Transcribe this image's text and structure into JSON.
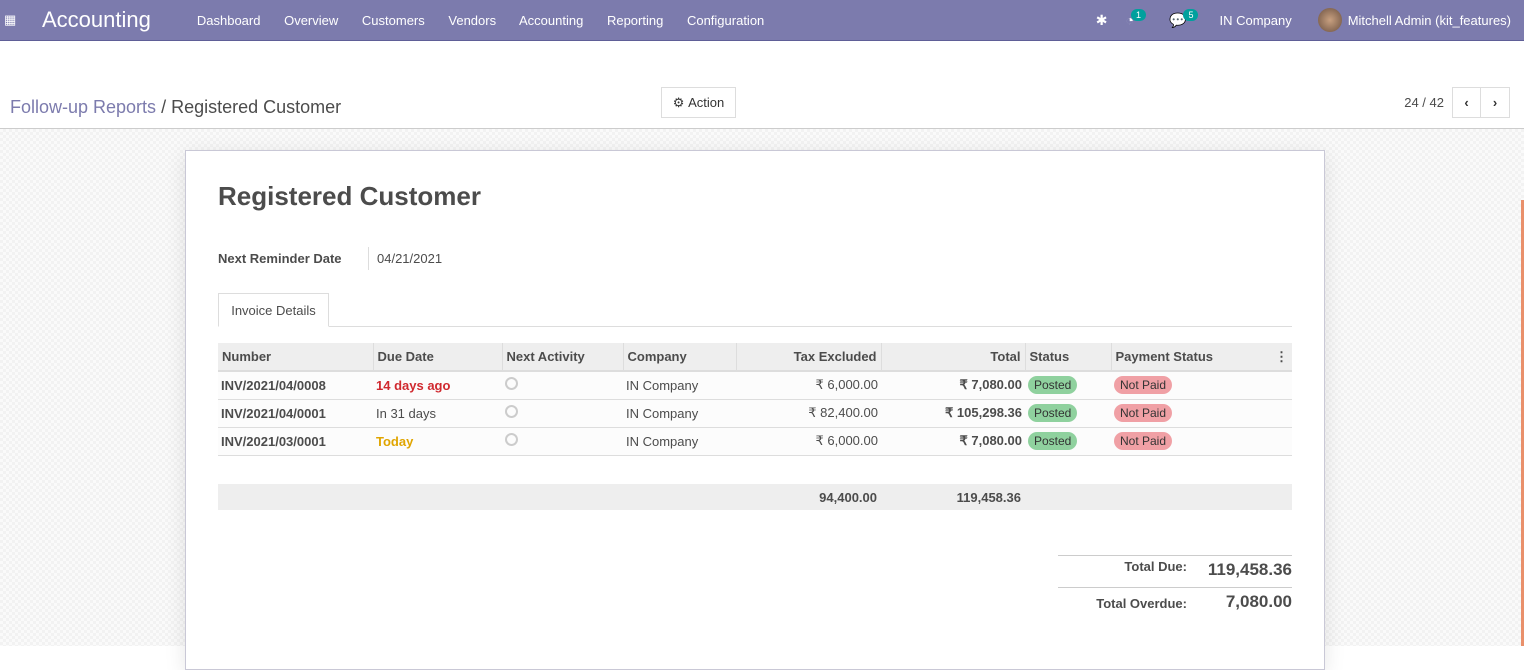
{
  "nav": {
    "app": "Accounting",
    "menu": [
      "Dashboard",
      "Overview",
      "Customers",
      "Vendors",
      "Accounting",
      "Reporting",
      "Configuration"
    ],
    "activity_count": "1",
    "message_count": "5",
    "company": "IN Company",
    "user": "Mitchell Admin (kit_features)"
  },
  "breadcrumb": {
    "parent": "Follow-up Reports",
    "sep": "/",
    "current": "Registered Customer"
  },
  "toolbar": {
    "action": "Action",
    "pager": "24 / 42"
  },
  "form": {
    "title": "Registered Customer",
    "reminder_label": "Next Reminder Date",
    "reminder_value": "04/21/2021",
    "tab": "Invoice Details"
  },
  "table": {
    "headers": [
      "Number",
      "Due Date",
      "Next Activity",
      "Company",
      "Tax Excluded",
      "Total",
      "Status",
      "Payment Status"
    ],
    "rows": [
      {
        "number": "INV/2021/04/0008",
        "due": "14 days ago",
        "due_color": "#d0292f",
        "company": "IN Company",
        "tax": "₹ 6,000.00",
        "total": "₹ 7,080.00",
        "status": "Posted",
        "payment": "Not Paid"
      },
      {
        "number": "INV/2021/04/0001",
        "due": "In 31 days",
        "due_color": "#4c4c4c",
        "company": "IN Company",
        "tax": "₹ 82,400.00",
        "total": "₹ 105,298.36",
        "status": "Posted",
        "payment": "Not Paid"
      },
      {
        "number": "INV/2021/03/0001",
        "due": "Today",
        "due_color": "#e0a500",
        "company": "IN Company",
        "tax": "₹ 6,000.00",
        "total": "₹ 7,080.00",
        "status": "Posted",
        "payment": "Not Paid"
      }
    ],
    "sum_tax": "94,400.00",
    "sum_total": "119,458.36"
  },
  "totals": {
    "due_label": "Total Due:",
    "due": "119,458.36",
    "overdue_label": "Total Overdue:",
    "overdue": "7,080.00"
  }
}
